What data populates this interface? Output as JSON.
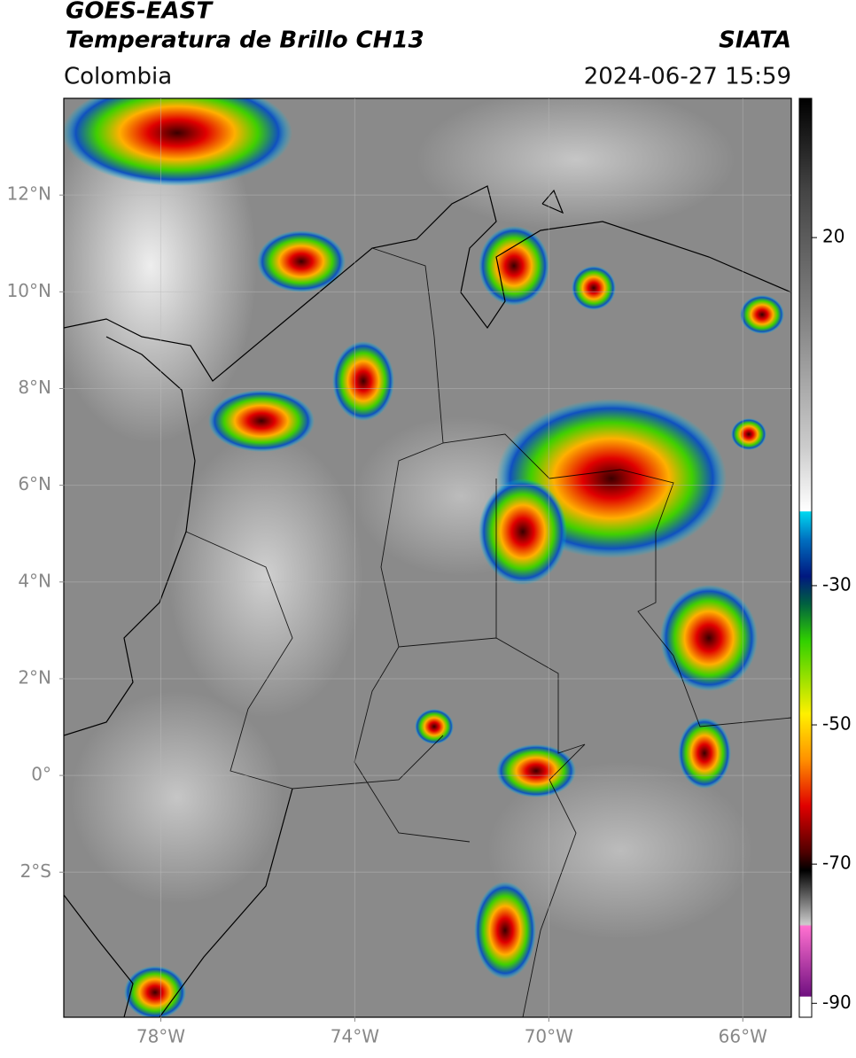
{
  "header": {
    "title": "GOES-EAST",
    "subtitle": "Temperatura de Brillo CH13",
    "source": "SIATA",
    "region": "Colombia",
    "timestamp": "2024-06-27 15:59"
  },
  "map": {
    "xlim": [
      -80,
      -65
    ],
    "ylim": [
      -5,
      14
    ],
    "xticks": [
      {
        "value": -78,
        "label": "78°W"
      },
      {
        "value": -74,
        "label": "74°W"
      },
      {
        "value": -70,
        "label": "70°W"
      },
      {
        "value": -66,
        "label": "66°W"
      }
    ],
    "yticks": [
      {
        "value": 12,
        "label": "12°N"
      },
      {
        "value": 10,
        "label": "10°N"
      },
      {
        "value": 8,
        "label": "8°N"
      },
      {
        "value": 6,
        "label": "6°N"
      },
      {
        "value": 4,
        "label": "4°N"
      },
      {
        "value": 2,
        "label": "2°N"
      },
      {
        "value": 0,
        "label": "0°"
      },
      {
        "value": -2,
        "label": "2°S"
      }
    ]
  },
  "colorbar": {
    "clim": [
      -92,
      40
    ],
    "ticks": [
      20,
      -30,
      -50,
      -70,
      -90
    ]
  }
}
